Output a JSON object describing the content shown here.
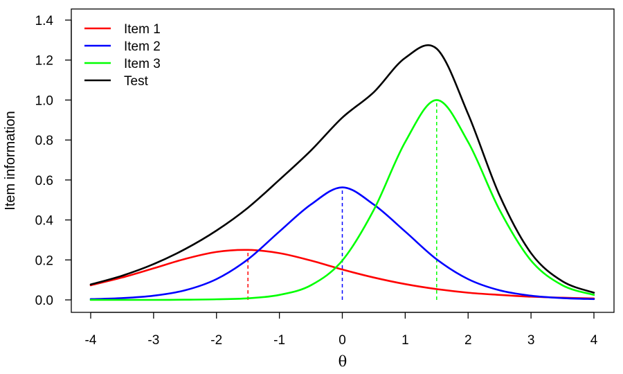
{
  "chart_data": {
    "type": "line",
    "xlabel": "θ",
    "ylabel": "Item information",
    "xlim": [
      -4,
      4
    ],
    "ylim": [
      0,
      1.4
    ],
    "x_ticks": [
      -4,
      -3,
      -2,
      -1,
      0,
      1,
      2,
      3,
      4
    ],
    "x_tick_labels": [
      "-4",
      "-3",
      "-2",
      "-1",
      "0",
      "1",
      "2",
      "3",
      "4"
    ],
    "y_ticks": [
      0,
      0.2,
      0.4,
      0.6,
      0.8,
      1.0,
      1.2,
      1.4
    ],
    "y_tick_labels": [
      "0.0",
      "0.2",
      "0.4",
      "0.6",
      "0.8",
      "1.0",
      "1.2",
      "1.4"
    ],
    "grid": false,
    "legend_position": "top-left",
    "x": [
      -4,
      -3.5,
      -3,
      -2.5,
      -2,
      -1.5,
      -1,
      -0.5,
      0,
      0.5,
      1,
      1.5,
      2,
      2.5,
      3,
      3.5,
      4
    ],
    "series": [
      {
        "name": "Item 1",
        "color": "#ff0000",
        "peak_theta": -1.5,
        "values": [
          0.073,
          0.112,
          0.158,
          0.205,
          0.24,
          0.25,
          0.234,
          0.197,
          0.152,
          0.112,
          0.079,
          0.054,
          0.036,
          0.025,
          0.016,
          0.011,
          0.007
        ]
      },
      {
        "name": "Item 2",
        "color": "#0000ff",
        "peak_theta": 0,
        "values": [
          0.004,
          0.009,
          0.021,
          0.048,
          0.104,
          0.203,
          0.342,
          0.477,
          0.563,
          0.477,
          0.342,
          0.203,
          0.104,
          0.048,
          0.021,
          0.009,
          0.004
        ]
      },
      {
        "name": "Item 3",
        "color": "#00ff00",
        "peak_theta": 1.5,
        "values": [
          0.0,
          0.0,
          0.0,
          0.001,
          0.003,
          0.008,
          0.025,
          0.073,
          0.197,
          0.45,
          0.79,
          1.0,
          0.79,
          0.45,
          0.197,
          0.073,
          0.025
        ]
      },
      {
        "name": "Test",
        "color": "#000000",
        "values": [
          0.077,
          0.121,
          0.179,
          0.254,
          0.347,
          0.461,
          0.601,
          0.747,
          0.912,
          1.039,
          1.211,
          1.257,
          0.93,
          0.523,
          0.234,
          0.093,
          0.036
        ]
      }
    ]
  }
}
